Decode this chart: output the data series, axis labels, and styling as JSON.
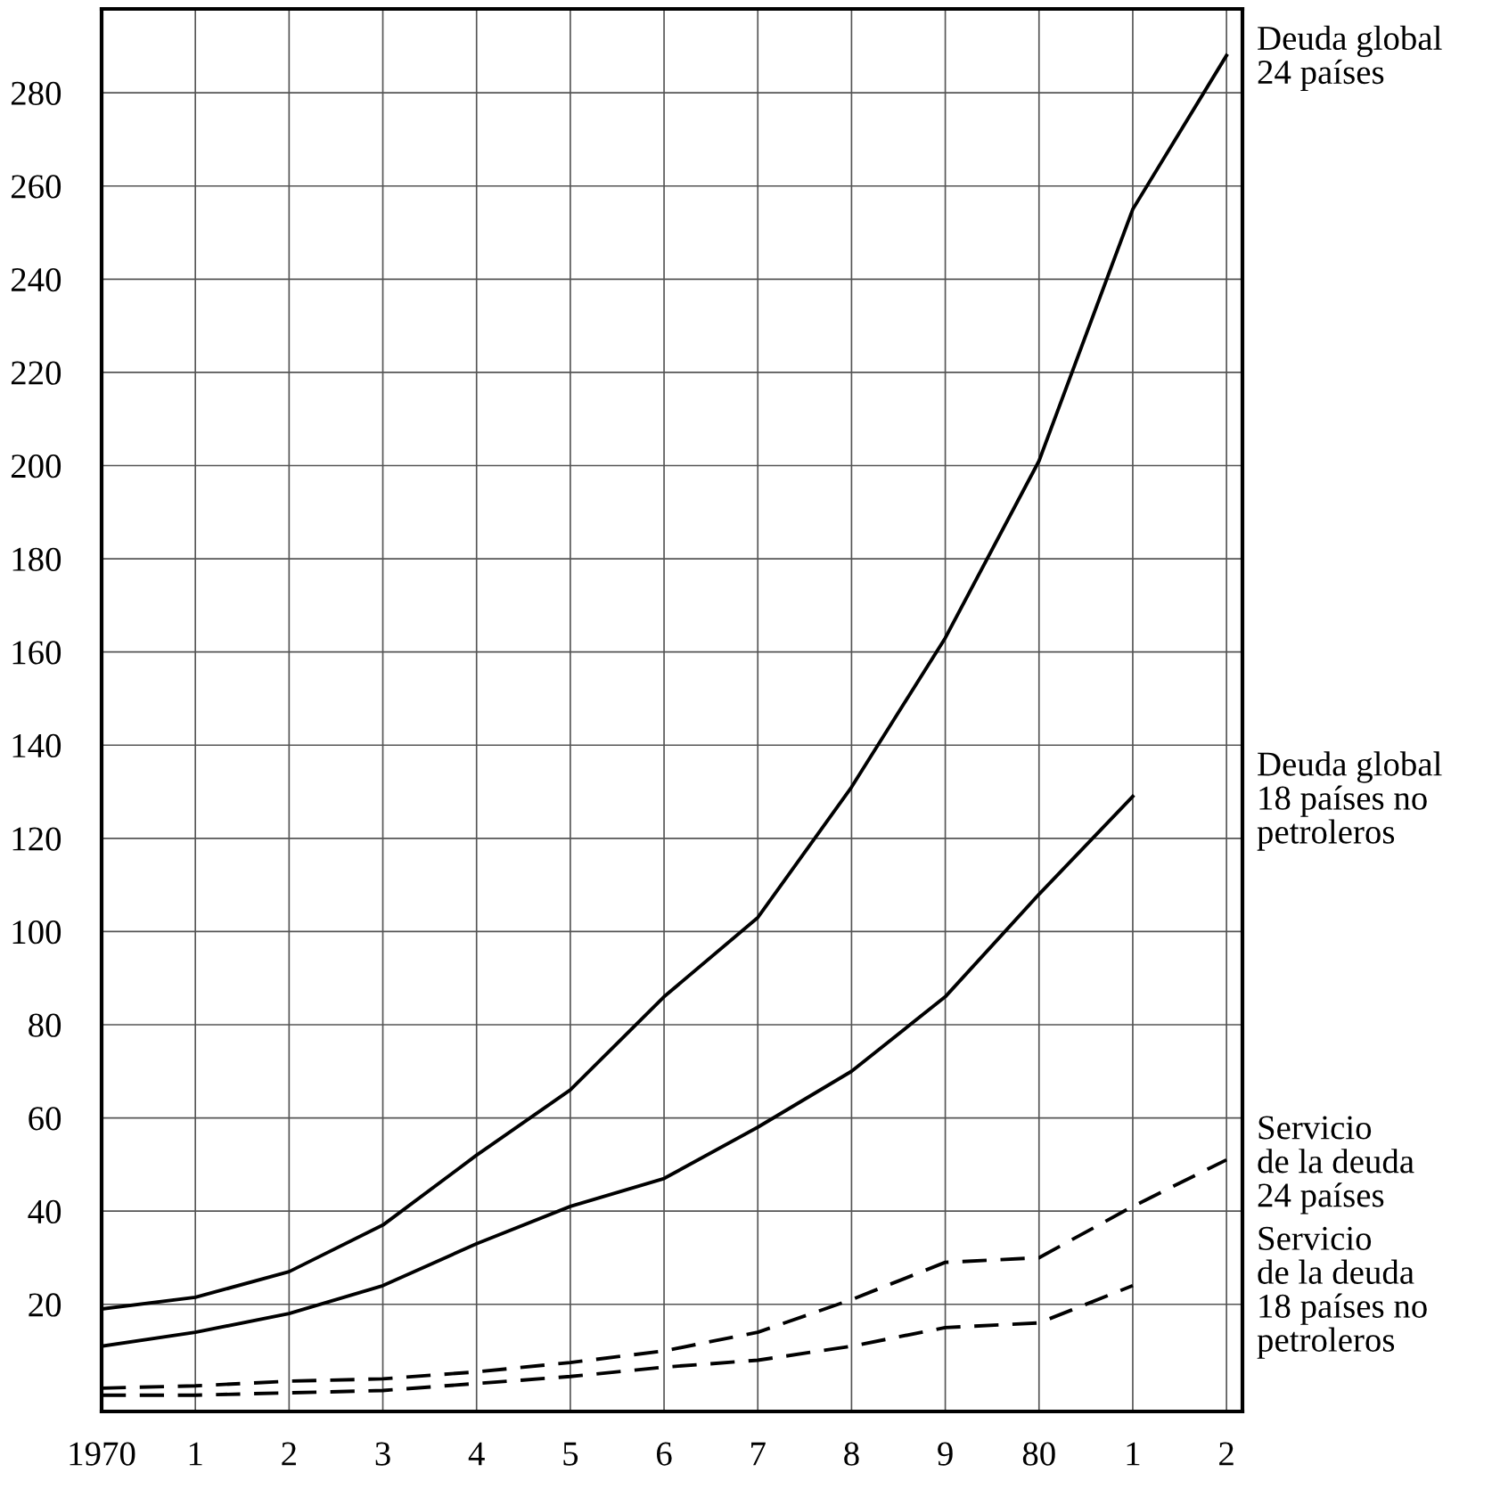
{
  "chart_data": {
    "type": "line",
    "categories": [
      "1970",
      "1",
      "2",
      "3",
      "4",
      "5",
      "6",
      "7",
      "8",
      "9",
      "80",
      "1",
      "2"
    ],
    "ylim": [
      -3,
      298
    ],
    "yticks": [
      20,
      40,
      60,
      80,
      100,
      120,
      140,
      160,
      180,
      200,
      220,
      240,
      260,
      280
    ],
    "grid": true,
    "marker": "none",
    "series": [
      {
        "name": "Deuda global\n24 países",
        "color": "#000000",
        "line_style": "solid",
        "values": [
          19,
          21.5,
          27,
          37,
          52,
          66,
          86,
          103,
          131,
          163,
          201,
          255,
          288
        ]
      },
      {
        "name": "Deuda global\n18 países no\npetroleros",
        "color": "#000000",
        "line_style": "solid",
        "values": [
          11,
          14,
          18,
          24,
          33,
          41,
          47,
          58,
          70,
          86,
          108,
          129,
          null
        ]
      },
      {
        "name": "Servicio\nde la deuda\n24 países",
        "color": "#000000",
        "line_style": "dashed",
        "values": [
          2,
          2.5,
          3.5,
          4,
          5.5,
          7.5,
          10,
          14,
          21,
          29,
          30,
          41,
          51
        ]
      },
      {
        "name": "Servicio\nde la deuda\n18 países no\npetroleros",
        "color": "#000000",
        "line_style": "dashed",
        "values": [
          0.5,
          0.5,
          1,
          1.5,
          3,
          4.5,
          6.5,
          8,
          11,
          15,
          16,
          24,
          null
        ]
      }
    ]
  }
}
